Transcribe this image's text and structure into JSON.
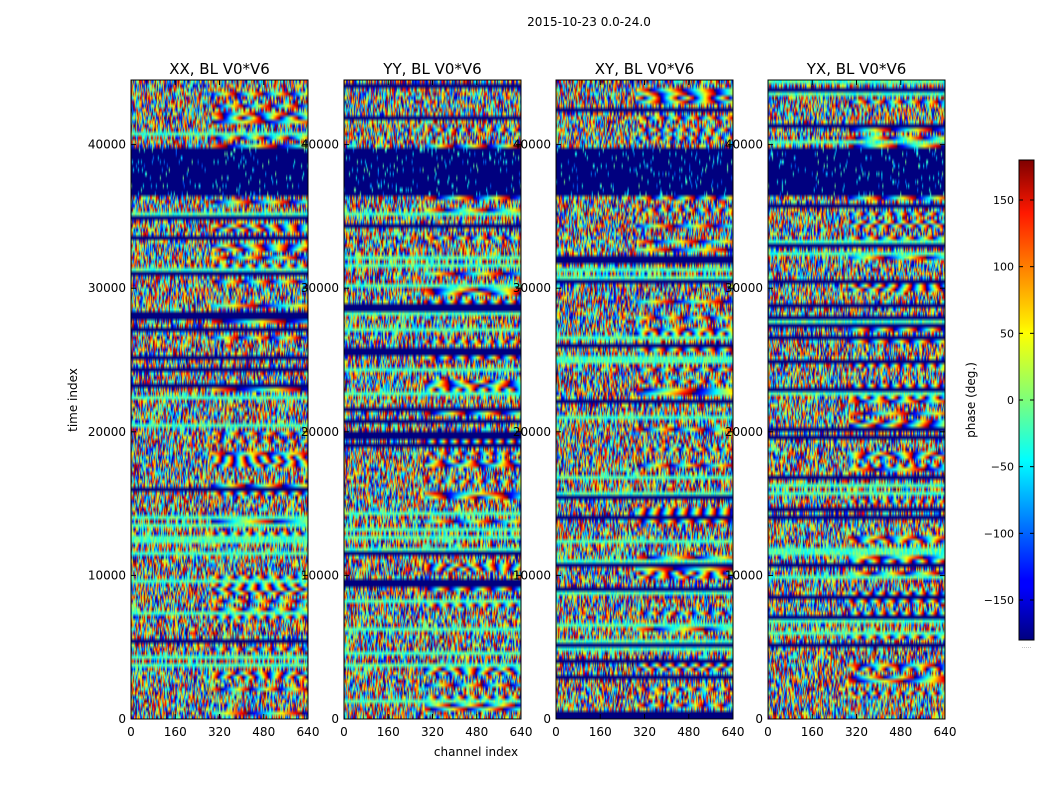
{
  "chart_data": {
    "type": "heatmap",
    "suptitle": "2015-10-23 0.0-24.0",
    "xlabel": "channel index",
    "ylabel": "time index",
    "x_ticks": [
      0,
      160,
      320,
      480,
      640
    ],
    "y_ticks": [
      0,
      10000,
      20000,
      30000,
      40000
    ],
    "xlim": [
      0,
      640
    ],
    "ylim": [
      0,
      44500
    ],
    "colorscale": "jet",
    "colorbar": {
      "label": "phase (deg.)",
      "range": [
        -180,
        180
      ],
      "ticks": [
        150,
        100,
        50,
        0,
        -50,
        -100,
        -150
      ],
      "tick_labels": [
        "150",
        "100",
        "50",
        "0",
        "−50",
        "−100",
        "−150"
      ],
      "extra_label": "....."
    },
    "panels": [
      {
        "name": "XX",
        "title": "XX, BL V0*V6"
      },
      {
        "name": "YY",
        "title": "YY, BL V0*V6"
      },
      {
        "name": "XY",
        "title": "XY, BL V0*V6"
      },
      {
        "name": "YX",
        "title": "YX, BL V0*V6"
      }
    ],
    "flagged_time_range": [
      36500,
      39800
    ]
  }
}
